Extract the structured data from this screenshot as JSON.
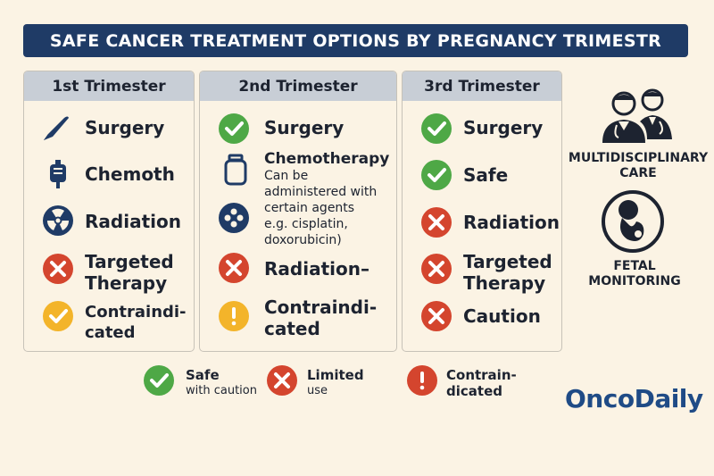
{
  "title": "SAFE CANCER TREATMENT OPTIONS BY PREGNANCY TRIMESTR",
  "colors": {
    "navy": "#1f3b66",
    "green": "#4ea846",
    "red": "#d4452e",
    "yellow": "#f3b42a",
    "header_gray": "#c8ced6",
    "background": "#fbf3e4",
    "brand_blue": "#1f4b86"
  },
  "columns": [
    {
      "header": "1st Trimester",
      "items": [
        {
          "icon": "scalpel-icon",
          "label": "Surgery"
        },
        {
          "icon": "iv-bag-icon",
          "label": "Chemoth"
        },
        {
          "icon": "radiation-icon",
          "label": "Radiation"
        },
        {
          "icon": "x-circle-icon",
          "label_line1": "Targeted",
          "label_line2": "Therapy"
        },
        {
          "icon": "check-circle-yellow-icon",
          "label_line1": "Contraindi-",
          "label_line2": "cated"
        }
      ]
    },
    {
      "header": "2nd Trimester",
      "items": [
        {
          "icon": "check-circle-icon",
          "label": "Surgery"
        },
        {
          "icon": "vial-icon",
          "label": "Chemotherapy",
          "sub_lines": [
            "Can be",
            "administered with",
            "certain agents",
            "e.g. cisplatin,",
            "doxorubicin)"
          ]
        },
        {
          "icon": "pill-dots-icon"
        },
        {
          "icon": "x-circle-icon",
          "label": "Radiation–"
        },
        {
          "icon": "exclamation-circle-icon",
          "label_line1": "Contraindi-",
          "label_line2": "cated"
        }
      ]
    },
    {
      "header": "3rd Trimester",
      "items": [
        {
          "icon": "check-circle-icon",
          "label": "Surgery"
        },
        {
          "icon": "check-circle-icon",
          "label": "Safe"
        },
        {
          "icon": "x-circle-icon",
          "label": "Radiation"
        },
        {
          "icon": "x-circle-icon",
          "label_line1": "Targeted",
          "label_line2": "Therapy"
        },
        {
          "icon": "x-circle-icon",
          "label": "Caution"
        }
      ]
    }
  ],
  "side": {
    "care_line1": "MULTIDISCIPLINARY",
    "care_line2": "CARE",
    "fetal_line1": "FETAL",
    "fetal_line2": "MONITORING"
  },
  "legend": [
    {
      "icon": "check-circle-icon",
      "label": "Safe",
      "sub": "with caution"
    },
    {
      "icon": "x-circle-icon",
      "label": "Limited",
      "sub": "use"
    },
    {
      "icon": "exclamation-circle-icon",
      "label": "Contrain-",
      "sub": "dicated"
    }
  ],
  "brand": "OncoDaily"
}
